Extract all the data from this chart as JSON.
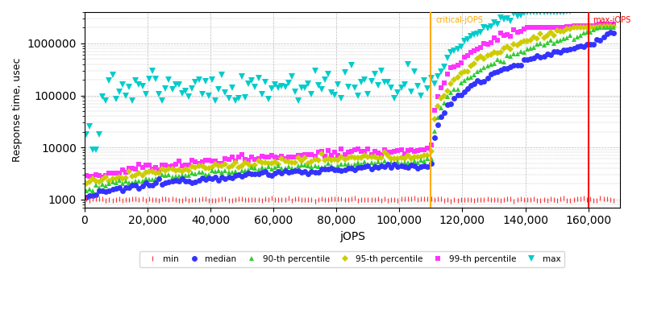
{
  "xlabel": "jOPS",
  "ylabel": "Response time, usec",
  "critical_jops": 110000,
  "max_jops": 160000,
  "critical_label": "critical-jOPS",
  "max_label": "max-jOPS",
  "xmax": 170000,
  "ymin": 700,
  "ymax": 4000000,
  "series": {
    "min": {
      "color": "#ff3333",
      "marker": "|",
      "markersize": 4,
      "label": "min"
    },
    "median": {
      "color": "#3333ff",
      "marker": "o",
      "markersize": 5,
      "label": "median"
    },
    "p90": {
      "color": "#33cc33",
      "marker": "^",
      "markersize": 5,
      "label": "90-th percentile"
    },
    "p95": {
      "color": "#cccc00",
      "marker": "D",
      "markersize": 4,
      "label": "95-th percentile"
    },
    "p99": {
      "color": "#ff33ff",
      "marker": "s",
      "markersize": 4,
      "label": "99-th percentile"
    },
    "max": {
      "color": "#00cccc",
      "marker": "v",
      "markersize": 6,
      "label": "max"
    }
  },
  "background_color": "#ffffff",
  "grid_color": "#bbbbbb",
  "orange_line_color": "#ffaa00",
  "red_line_color": "#ff0000"
}
